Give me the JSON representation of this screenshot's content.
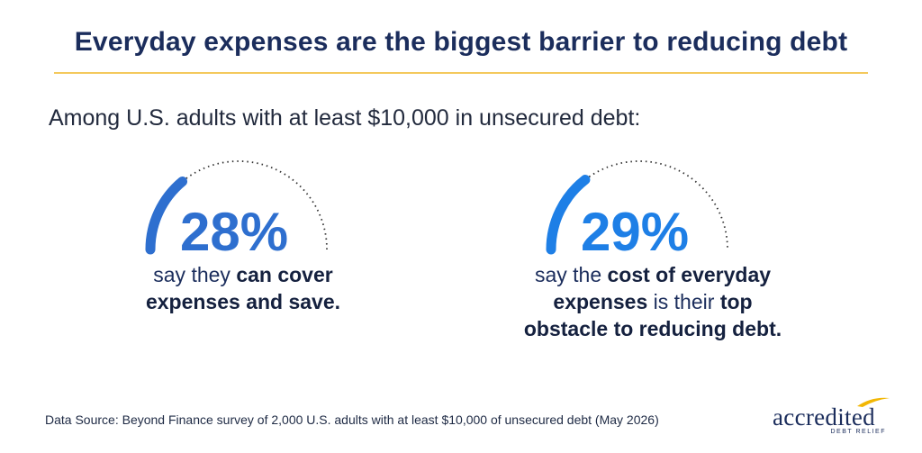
{
  "title": "Everyday expenses are the biggest barrier to reducing debt",
  "intro": "Among U.S. adults with at least $10,000 in unsecured debt:",
  "colors": {
    "gauge1": "#2e6fcf",
    "gauge2": "#1e7fe6",
    "track": "#333333",
    "accent_rule": "#f4c95d",
    "navy": "#1b2d5c"
  },
  "chart_data": [
    {
      "type": "gauge",
      "value": 28,
      "label": "28%",
      "caption": [
        "say they ",
        "can cover",
        " ",
        "expenses and save."
      ]
    },
    {
      "type": "gauge",
      "value": 29,
      "label": "29%",
      "caption": [
        "say the ",
        "cost of everyday",
        " ",
        "expenses",
        " is their ",
        "top",
        " ",
        "obstacle to reducing debt."
      ]
    }
  ],
  "source": "Data Source: Beyond Finance survey of 2,000 U.S. adults with at least $10,000 of unsecured debt (May 2026)",
  "logo": {
    "word": "accredited",
    "sub": "DEBT RELIEF"
  }
}
